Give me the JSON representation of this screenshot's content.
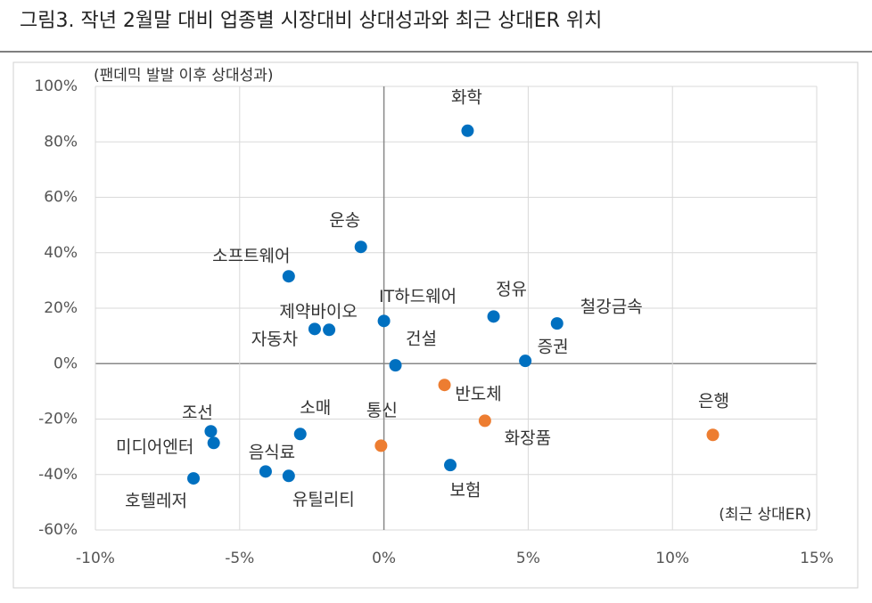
{
  "chart_data": {
    "type": "scatter",
    "title": "그림3. 작년 2월말 대비 업종별 시장대비 상대성과와 최근 상대ER 위치",
    "y_label": "(팬데믹 발발 이후 상대성과)",
    "x_label": "(최근 상대ER)",
    "xlim": [
      -10,
      15
    ],
    "xticks": [
      {
        "value": -10,
        "label": "-10%"
      },
      {
        "value": -5,
        "label": "-5%"
      },
      {
        "value": 0,
        "label": "0%"
      },
      {
        "value": 5,
        "label": "5%"
      },
      {
        "value": 10,
        "label": "10%"
      },
      {
        "value": 15,
        "label": "15%"
      }
    ],
    "ylim": [
      -60,
      100
    ],
    "yticks": [
      {
        "value": -60,
        "label": "-60%"
      },
      {
        "value": -40,
        "label": "-40%"
      },
      {
        "value": -20,
        "label": "-20%"
      },
      {
        "value": 0,
        "label": "0%"
      },
      {
        "value": 20,
        "label": "20%"
      },
      {
        "value": 40,
        "label": "40%"
      },
      {
        "value": 60,
        "label": "60%"
      },
      {
        "value": 80,
        "label": "80%"
      },
      {
        "value": 100,
        "label": "100%"
      }
    ],
    "grid": true,
    "series": [
      {
        "color": "#0070c0",
        "labels": [
          "화학",
          "운송",
          "소프트웨어",
          "IT하드웨어",
          "정유",
          "철강금속",
          "제약바이오",
          "자동차",
          "건설",
          "증권",
          "소매",
          "조선",
          "미디어엔터",
          "음식료",
          "유틸리티",
          "호텔레저",
          "보험"
        ],
        "x": [
          2.9,
          -0.8,
          -3.3,
          0.0,
          3.8,
          6.0,
          -1.9,
          -2.4,
          0.4,
          4.9,
          -2.9,
          -6.0,
          -5.9,
          -4.1,
          -3.3,
          -6.6,
          2.3
        ],
        "values": [
          84,
          42.1,
          31.5,
          15.4,
          17.0,
          14.5,
          12.2,
          12.5,
          -0.6,
          1.0,
          -25.4,
          -24.4,
          -28.6,
          -38.9,
          -40.5,
          -41.4,
          -36.6
        ]
      },
      {
        "color": "#ed7d31",
        "labels": [
          "반도체",
          "화장품",
          "은행",
          "통신"
        ],
        "x": [
          2.1,
          3.5,
          11.4,
          -0.1
        ],
        "values": [
          -7.7,
          -20.6,
          -25.7,
          -29.6
        ]
      }
    ]
  }
}
